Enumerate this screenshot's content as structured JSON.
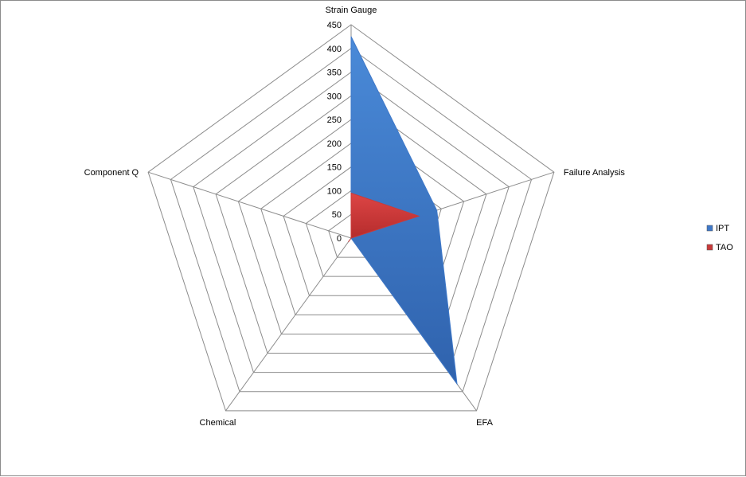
{
  "chart_data": {
    "type": "radar",
    "categories": [
      "Strain Gauge",
      "Failure Analysis",
      "EFA",
      "Chemical",
      "Component Q"
    ],
    "series": [
      {
        "name": "IPT",
        "values": [
          425,
          190,
          380,
          0,
          0
        ],
        "color": "#3e78c9"
      },
      {
        "name": "TAO",
        "values": [
          95,
          150,
          0,
          10,
          0
        ],
        "color": "#c93a3a"
      }
    ],
    "rlim": [
      0,
      450
    ],
    "ticks": [
      "0",
      "50",
      "100",
      "150",
      "200",
      "250",
      "300",
      "350",
      "400",
      "450"
    ],
    "grid": true,
    "legend": "right"
  }
}
